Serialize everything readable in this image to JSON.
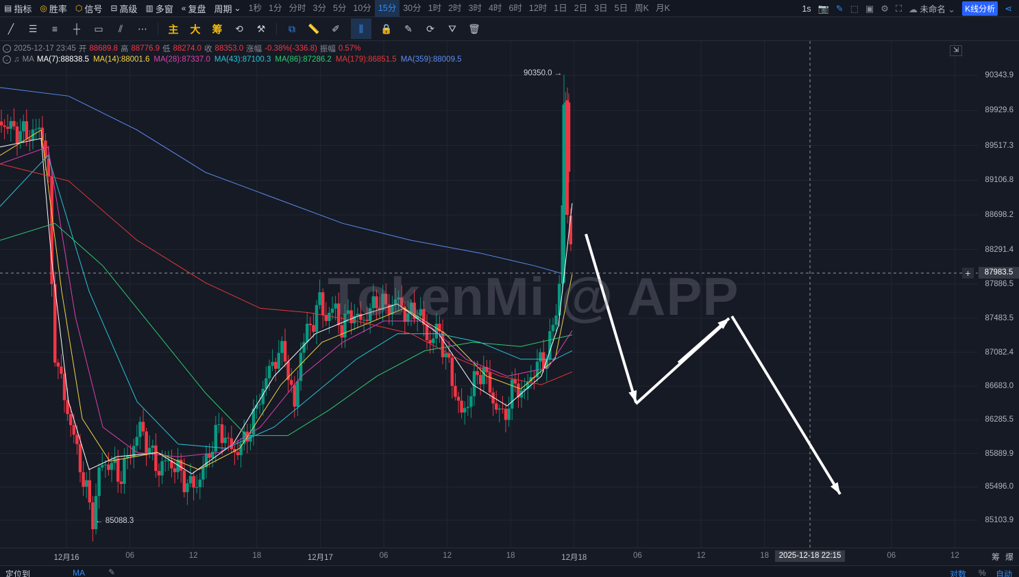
{
  "topbar": {
    "items": [
      {
        "icon": "indicator-icon",
        "label": "指标"
      },
      {
        "icon": "win-rate-icon",
        "label": "胜率"
      },
      {
        "icon": "signal-icon",
        "label": "信号"
      },
      {
        "icon": "advanced-icon",
        "label": "高级"
      },
      {
        "icon": "multi-window-icon",
        "label": "多窗"
      },
      {
        "icon": "replay-icon",
        "label": "复盘"
      },
      {
        "icon": "chevron-down-icon",
        "label": "周期"
      }
    ],
    "periods": [
      "1秒",
      "1分",
      "分时",
      "3分",
      "5分",
      "10分",
      "15分",
      "30分",
      "1时",
      "2时",
      "3时",
      "4时",
      "6时",
      "12时",
      "1日",
      "2日",
      "3日",
      "5日",
      "周K",
      "月K"
    ],
    "active_period": "15分",
    "right": {
      "interval": "1s",
      "chart_name": "未命名",
      "kline_button": "K线分析"
    }
  },
  "toolbar": {
    "draw_tools": [
      "trendline-icon",
      "hline-icon",
      "parallel-icon",
      "cross-icon",
      "rectangle-icon",
      "fib-icon",
      "more-icon"
    ],
    "labels": [
      "主",
      "大",
      "筹"
    ],
    "tools2": [
      "settings-icon",
      "tool-icon",
      "copy-icon",
      "ruler-icon",
      "pen-icon",
      "candle-icon",
      "lock-icon",
      "note-icon",
      "magnet-icon",
      "filter-icon",
      "trash-icon"
    ]
  },
  "legend": {
    "ohlc": {
      "datetime": "2025-12-17 23:45",
      "open_label": "开",
      "open": "88689.8",
      "high_label": "高",
      "high": "88776.9",
      "low_label": "低",
      "low": "88274.0",
      "close_label": "收",
      "close": "88353.0",
      "change_label": "涨幅",
      "change": "-0.38%(-336.8)",
      "amplitude_label": "振幅",
      "amplitude": "0.57%"
    },
    "ma_label": "MA",
    "ma": [
      {
        "text": "MA(7):88838.5",
        "color": "#ffffff"
      },
      {
        "text": "MA(14):88001.6",
        "color": "#f5d547"
      },
      {
        "text": "MA(28):87337.0",
        "color": "#e040b0"
      },
      {
        "text": "MA(43):87100.3",
        "color": "#26c6da"
      },
      {
        "text": "MA(86):87286.2",
        "color": "#2ecc71"
      },
      {
        "text": "MA(179):86851.5",
        "color": "#e53935"
      },
      {
        "text": "MA(359):88009.5",
        "color": "#5b8def"
      }
    ]
  },
  "chart_data": {
    "type": "candlestick",
    "symbol_interval": "15分",
    "price_ticks": [
      "90343.9",
      "89929.6",
      "89517.3",
      "89106.8",
      "88698.2",
      "88291.4",
      "87886.5",
      "87483.5",
      "87082.4",
      "86683.0",
      "86285.5",
      "85889.9",
      "85496.0",
      "85103.9"
    ],
    "time_ticks": [
      "12月16",
      "06",
      "12",
      "18",
      "12月17",
      "06",
      "12",
      "18",
      "12月18",
      "06",
      "12",
      "18",
      "06",
      "12"
    ],
    "crosshair_price": "87983.5",
    "crosshair_time": "2025-12-18 22:15",
    "high_marker": "90350.0",
    "low_marker": "85088.3",
    "ylim": [
      85000,
      90450
    ],
    "watermark": "TokenMi @ APP",
    "colors": {
      "up": "#089981",
      "down": "#f23645"
    }
  },
  "axis_right_controls": [
    "筹",
    "爆"
  ],
  "bottombar": {
    "locate": "定位到",
    "ma": "MA",
    "log": "对数",
    "pct": "%",
    "auto": "自动"
  }
}
